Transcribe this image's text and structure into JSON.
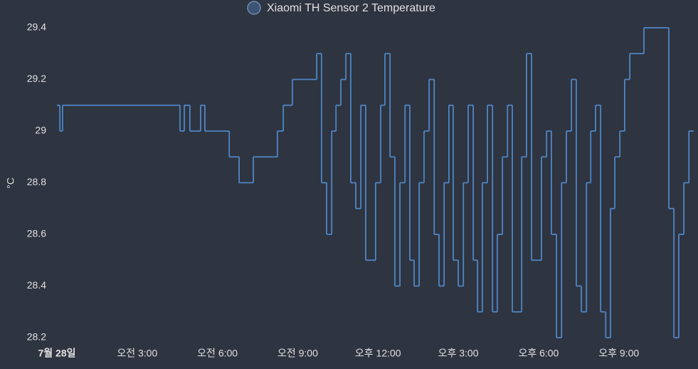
{
  "chart_data": {
    "type": "step-line",
    "legend": "Xiaomi TH Sensor 2 Temperature",
    "y_label": "°C",
    "color": "#4f86c6",
    "xlim": [
      0,
      23.8
    ],
    "ylim": [
      28.2,
      29.4
    ],
    "yticks": [
      28.2,
      28.4,
      28.6,
      28.8,
      29.0,
      29.2,
      29.4
    ],
    "xticks": [
      {
        "value": 0,
        "label": "7월 28일"
      },
      {
        "value": 3,
        "label": "오전 3:00"
      },
      {
        "value": 6,
        "label": "오전 6:00"
      },
      {
        "value": 9,
        "label": "오전 9:00"
      },
      {
        "value": 12,
        "label": "오후 12:00"
      },
      {
        "value": 15,
        "label": "오후 3:00"
      },
      {
        "value": 18,
        "label": "오후 6:00"
      },
      {
        "value": 21,
        "label": "오후 9:00"
      }
    ],
    "x": [
      0,
      0.11,
      0.21,
      4.6,
      4.76,
      4.97,
      5.37,
      5.53,
      6.44,
      6.81,
      7.34,
      8.24,
      8.46,
      8.8,
      9.71,
      9.89,
      10.08,
      10.27,
      10.43,
      10.61,
      10.8,
      10.98,
      11.17,
      11.36,
      11.54,
      11.91,
      12.1,
      12.26,
      12.45,
      12.63,
      12.82,
      13.01,
      13.19,
      13.35,
      13.54,
      13.72,
      13.91,
      14.1,
      14.28,
      14.47,
      14.65,
      14.81,
      15.0,
      15.19,
      15.37,
      15.56,
      15.72,
      15.9,
      16.09,
      16.28,
      16.46,
      16.65,
      16.84,
      17.02,
      17.37,
      17.55,
      17.74,
      18.11,
      18.3,
      18.48,
      18.67,
      18.86,
      19.04,
      19.23,
      19.41,
      19.6,
      19.79,
      19.95,
      20.13,
      20.32,
      20.51,
      20.69,
      20.85,
      21.04,
      21.22,
      21.41,
      21.94,
      22.87,
      23.06,
      23.24,
      23.43,
      23.62,
      23.8
    ],
    "values": [
      29.1,
      29.0,
      29.1,
      29.0,
      29.1,
      29.0,
      29.1,
      29.0,
      28.9,
      28.8,
      28.9,
      29.0,
      29.1,
      29.2,
      29.3,
      28.8,
      28.6,
      29.0,
      29.1,
      29.2,
      29.3,
      28.8,
      28.7,
      29.1,
      28.5,
      28.8,
      29.1,
      29.3,
      28.9,
      28.4,
      28.8,
      29.1,
      28.5,
      28.4,
      28.8,
      29.0,
      29.2,
      28.6,
      28.4,
      28.8,
      29.1,
      28.5,
      28.4,
      28.8,
      29.1,
      28.5,
      28.3,
      28.8,
      29.1,
      28.3,
      28.6,
      28.9,
      29.1,
      28.3,
      28.9,
      29.3,
      28.5,
      28.9,
      29.0,
      28.6,
      28.2,
      28.8,
      29.0,
      29.2,
      28.4,
      28.3,
      28.8,
      29.0,
      29.1,
      28.3,
      28.2,
      28.7,
      28.9,
      29.0,
      29.2,
      29.3,
      29.4,
      28.7,
      28.2,
      28.6,
      28.8,
      29.0,
      29.0
    ]
  }
}
